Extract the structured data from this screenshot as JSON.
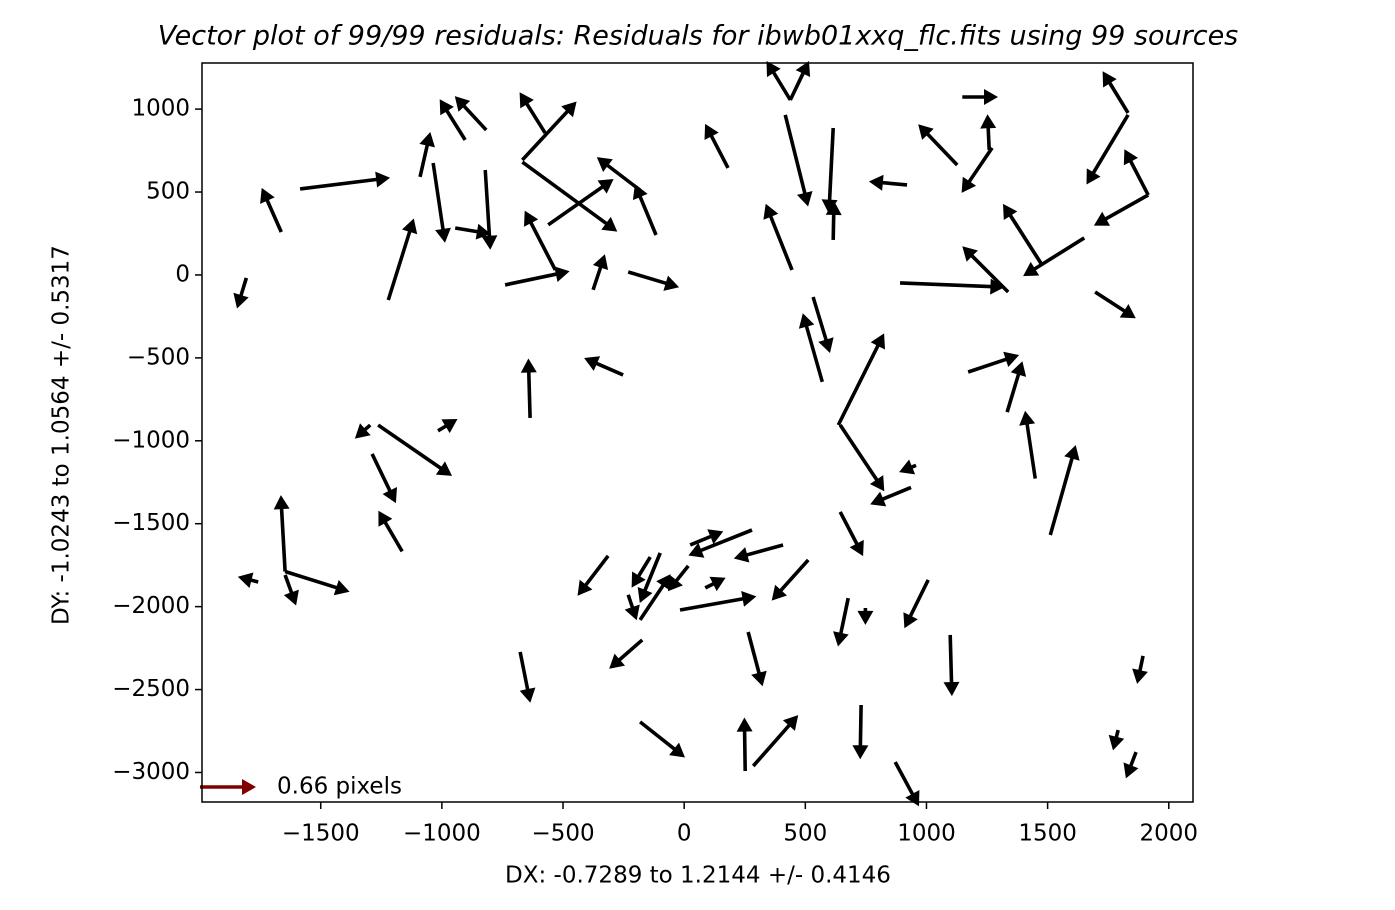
{
  "chart_data": {
    "type": "quiver",
    "title": "Vector plot of 99/99 residuals: Residuals for ibwb01xxq_flc.fits using 99 sources",
    "xlabel": "DX: -0.7289 to 1.2144 +/- 0.4146",
    "ylabel": "DY: -1.0243 to 1.0564 +/- 0.5317",
    "color": "#000000",
    "xlim": [
      -1990,
      2100
    ],
    "ylim": [
      -3178,
      1278
    ],
    "xticks": [
      {
        "value": -1500,
        "label": "−1500"
      },
      {
        "value": -1000,
        "label": "−1000"
      },
      {
        "value": -500,
        "label": "−500"
      },
      0,
      500,
      1000,
      1500,
      2000
    ],
    "yticks": [
      {
        "value": -3000,
        "label": "−3000"
      },
      {
        "value": -2500,
        "label": "−2500"
      },
      {
        "value": -2000,
        "label": "−2000"
      },
      {
        "value": -1500,
        "label": "−1500"
      },
      {
        "value": -1000,
        "label": "−1000"
      },
      {
        "value": -500,
        "label": "−500"
      },
      0,
      500,
      1000
    ],
    "key": {
      "value": 0.66,
      "label": "0.66 pixels",
      "color": "#800000"
    },
    "x": [
      -1585,
      -1663,
      -1807,
      -1221,
      -1090,
      -1036,
      -817,
      -904,
      -821,
      -945,
      -574,
      -668,
      -668,
      -561,
      -532,
      -739,
      -376,
      -231,
      -182,
      -116,
      181,
      417,
      438,
      438,
      615,
      615,
      445,
      920,
      1148,
      1127,
      1271,
      1259,
      1832,
      1832,
      1915,
      1915,
      1477,
      1651,
      1337,
      891,
      1696,
      532,
      570,
      636,
      644,
      -252,
      -636,
      -1263,
      -1296,
      -1016,
      -1288,
      -1164,
      -1647,
      -1647,
      -1647,
      -1758,
      -99,
      -314,
      -140,
      -182,
      -231,
      -17,
      280,
      408,
      25,
      87,
      512,
      -173,
      17,
      264,
      677,
      748,
      1007,
      1098,
      730,
      285,
      252,
      -182,
      -677,
      871,
      1511,
      1449,
      1333,
      1172,
      936,
      957,
      644,
      1894,
      1791,
      1865
    ],
    "y": [
      519,
      259,
      -18,
      -151,
      591,
      675,
      874,
      814,
      633,
      283,
      856,
      693,
      681,
      302,
      30,
      -60,
      -90,
      18,
      511,
      241,
      645,
      965,
      1055,
      1055,
      886,
      211,
      30,
      543,
      1073,
      663,
      766,
      754,
      977,
      965,
      482,
      482,
      60,
      223,
      -103,
      -48,
      -103,
      -133,
      -645,
      -905,
      -905,
      -603,
      -862,
      -905,
      -905,
      -940,
      -1079,
      -1667,
      -1788,
      -1788,
      -1809,
      -1851,
      -1676,
      -1694,
      -1701,
      -2080,
      -1929,
      -2020,
      -1538,
      -1628,
      -1628,
      -1887,
      -1718,
      -2201,
      -1754,
      -2153,
      -1949,
      -2008,
      -1839,
      -2171,
      -2593,
      -2961,
      -2991,
      -2695,
      -2273,
      -2937,
      -1568,
      -1228,
      -827,
      -585,
      -1281,
      -1148,
      -1429,
      -2297,
      -2744,
      -2877
    ],
    "u": [
      1.06,
      -0.23,
      -0.11,
      0.3,
      0.12,
      0.14,
      -0.37,
      -0.3,
      0.06,
      0.42,
      -0.3,
      0.64,
      1.12,
      0.77,
      -0.36,
      0.76,
      0.14,
      0.6,
      -0.51,
      -0.25,
      -0.27,
      0.27,
      0.22,
      -0.28,
      -0.05,
      0.01,
      -0.31,
      -0.45,
      0.42,
      -0.46,
      -0.36,
      -0.02,
      -0.3,
      -0.49,
      -0.28,
      -0.64,
      -0.46,
      -0.72,
      -0.54,
      1.23,
      0.48,
      0.2,
      -0.23,
      0.54,
      0.52,
      -0.46,
      -0.02,
      0.87,
      -0.18,
      0.23,
      0.28,
      -0.28,
      -0.05,
      0.76,
      0.13,
      -0.24,
      -0.24,
      -0.36,
      -0.22,
      0.36,
      0.1,
      0.9,
      -0.75,
      -0.58,
      0.39,
      0.24,
      -0.43,
      -0.39,
      -0.24,
      0.17,
      -0.12,
      0,
      -0.28,
      0.02,
      -0.01,
      0.53,
      -0.01,
      0.53,
      0.12,
      0.28,
      0.3,
      -0.12,
      0.18,
      0.6,
      -0.48,
      -0.2,
      0.27,
      -0.07,
      -0.06,
      -0.12
    ],
    "v": [
      0.13,
      0.52,
      -0.36,
      0.96,
      0.53,
      -0.94,
      0.4,
      0.48,
      -0.94,
      -0.07,
      0.48,
      0.69,
      -0.82,
      0.54,
      0.7,
      0.16,
      0.42,
      -0.18,
      0.39,
      0.6,
      0.52,
      -1.08,
      0.46,
      0.46,
      -1.01,
      0.46,
      0.78,
      0.04,
      0,
      0.48,
      -0.53,
      0.42,
      0.49,
      -0.82,
      0.54,
      -0.36,
      0.72,
      -0.45,
      0.54,
      -0.05,
      -0.31,
      -0.66,
      0.81,
      1.08,
      -0.78,
      0.2,
      0.7,
      -0.6,
      -0.16,
      0.14,
      -0.58,
      0.48,
      0.9,
      -0.24,
      -0.36,
      0.06,
      -0.59,
      -0.47,
      -0.36,
      0.54,
      -0.3,
      0.16,
      -0.3,
      -0.16,
      0.16,
      0.12,
      -0.48,
      -0.34,
      -0.3,
      -0.64,
      -0.57,
      -0.2,
      -0.57,
      -0.72,
      -0.64,
      0.6,
      0.63,
      -0.42,
      -0.6,
      -0.52,
      1.06,
      0.8,
      0.6,
      0.2,
      -0.2,
      -0.08,
      -0.52,
      -0.33,
      -0.24,
      -0.31
    ]
  }
}
